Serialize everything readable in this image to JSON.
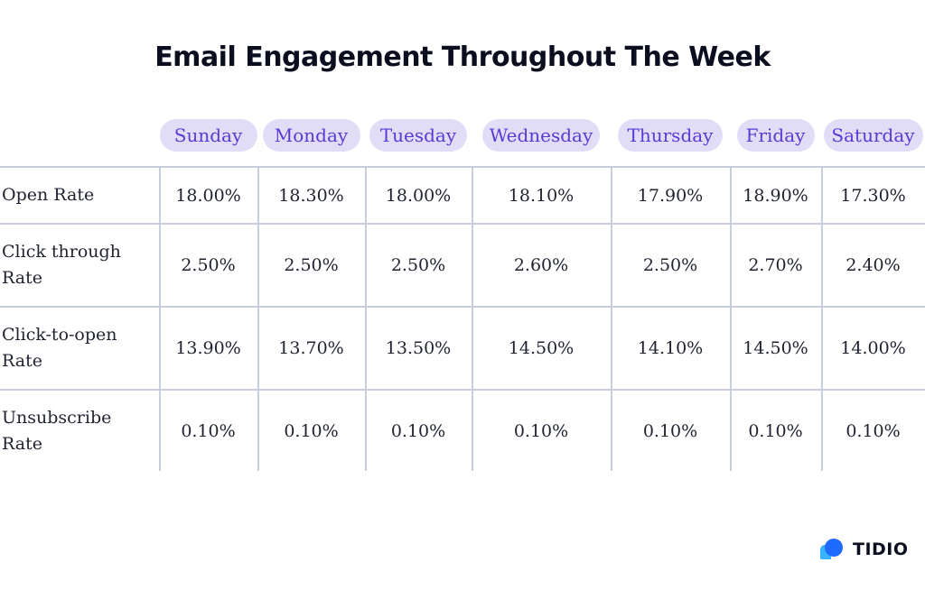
{
  "title": "Email Engagement Throughout The Week",
  "colors": {
    "pill_bg": "#e2ddf7",
    "pill_text": "#5a3ad6",
    "grid": "#c6cedb",
    "logo_blue": "#1f8fff"
  },
  "chart_data": {
    "type": "table",
    "title": "Email Engagement Throughout The Week",
    "columns": [
      "Sunday",
      "Monday",
      "Tuesday",
      "Wednesday",
      "Thursday",
      "Friday",
      "Saturday"
    ],
    "rows": [
      {
        "label": "Open Rate",
        "values": [
          "18.00%",
          "18.30%",
          "18.00%",
          "18.10%",
          "17.90%",
          "18.90%",
          "17.30%"
        ]
      },
      {
        "label": "Click through Rate",
        "values": [
          "2.50%",
          "2.50%",
          "2.50%",
          "2.60%",
          "2.50%",
          "2.70%",
          "2.40%"
        ]
      },
      {
        "label": "Click-to-open Rate",
        "values": [
          "13.90%",
          "13.70%",
          "13.50%",
          "14.50%",
          "14.10%",
          "14.50%",
          "14.00%"
        ]
      },
      {
        "label": "Unsubscribe Rate",
        "values": [
          "0.10%",
          "0.10%",
          "0.10%",
          "0.10%",
          "0.10%",
          "0.10%",
          "0.10%"
        ]
      }
    ]
  },
  "logo": {
    "text": "TIDIO",
    "icon": "chat-bubble-icon"
  }
}
